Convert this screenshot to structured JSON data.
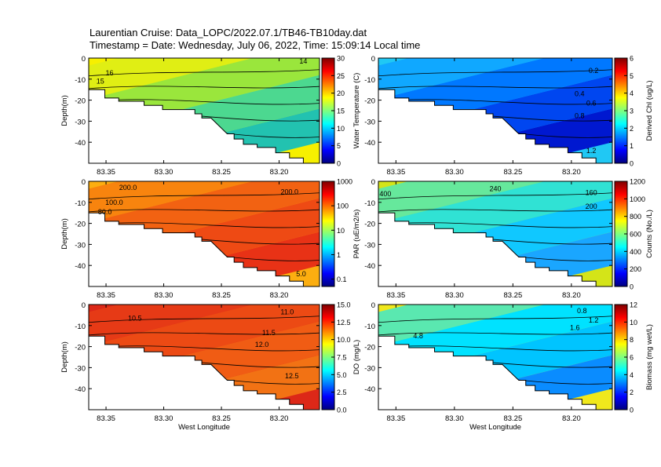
{
  "header": {
    "line1": "Laurentian Cruise: Data_LOPC/2022.07.1/TB46-TB10day.dat",
    "line2": "Timestamp = Date: Wednesday, July 06, 2022, Time: 15:09:14 Local time"
  },
  "chart_data": [
    {
      "type": "heatmap",
      "id": "water-temperature",
      "colorbar_label": "Water Temperature (C)",
      "colorbar_ticks": [
        "0",
        "5",
        "10",
        "15",
        "20",
        "25",
        "30"
      ],
      "colorbar_values": [
        0,
        5,
        10,
        15,
        20,
        25,
        30
      ],
      "y_label": "Depth(m)",
      "x_label": "",
      "x_ticks": [
        "83.35",
        "83.30",
        "83.25",
        "83.20"
      ],
      "y_ticks": [
        "0",
        "-10",
        "-20",
        "-30",
        "-40"
      ],
      "xlim": [
        83.365,
        83.165
      ],
      "ylim": [
        -50,
        0
      ],
      "contour_labels": [
        "14",
        "16",
        "15"
      ],
      "colors": [
        "#22c2b0",
        "#4cd890",
        "#9ae63c",
        "#e0ee14",
        "#f6f000"
      ]
    },
    {
      "type": "heatmap",
      "id": "derived-chl",
      "colorbar_label": "Derived Chl (ug/L)",
      "colorbar_ticks": [
        "0",
        "1",
        "2",
        "3",
        "4",
        "5",
        "6"
      ],
      "colorbar_values": [
        0,
        1,
        2,
        3,
        4,
        5,
        6
      ],
      "y_label": "",
      "x_label": "",
      "x_ticks": [
        "83.35",
        "83.30",
        "83.25",
        "83.20"
      ],
      "y_ticks": [
        "0",
        "-10",
        "-20",
        "-30",
        "-40"
      ],
      "xlim": [
        83.365,
        83.165
      ],
      "ylim": [
        -50,
        0
      ],
      "contour_labels": [
        "0.2",
        "0.4",
        "0.6",
        "0.8",
        "1.2"
      ],
      "colors": [
        "#0018d0",
        "#0046f0",
        "#0078ff",
        "#10a8ff",
        "#20c8f4"
      ]
    },
    {
      "type": "heatmap",
      "id": "par",
      "colorbar_label": "PAR (uE/m2/s)",
      "colorbar_ticks": [
        "0.1",
        "1",
        "10",
        "100",
        "1000"
      ],
      "colorbar_values": [
        0.1,
        1,
        10,
        100,
        1000
      ],
      "y_label": "Depth(m)",
      "x_label": "",
      "x_ticks": [
        "83.35",
        "83.30",
        "83.25",
        "83.20"
      ],
      "y_ticks": [
        "0",
        "-10",
        "-20",
        "-30",
        "-40"
      ],
      "xlim": [
        83.365,
        83.165
      ],
      "ylim": [
        -50,
        0
      ],
      "contour_labels": [
        "200.0",
        "200.0",
        "100.0",
        "80.0",
        "5.0"
      ],
      "colors": [
        "#e83216",
        "#ee4a14",
        "#f26212",
        "#f8840e",
        "#fcae10"
      ]
    },
    {
      "type": "heatmap",
      "id": "counts",
      "colorbar_label": "Counts (No./L)",
      "colorbar_ticks": [
        "0",
        "200",
        "400",
        "600",
        "800",
        "1000",
        "1200"
      ],
      "colorbar_values": [
        0,
        200,
        400,
        600,
        800,
        1000,
        1200
      ],
      "y_label": "",
      "x_label": "",
      "x_ticks": [
        "83.35",
        "83.30",
        "83.25",
        "83.20"
      ],
      "y_ticks": [
        "0",
        "-10",
        "-20",
        "-30",
        "-40"
      ],
      "xlim": [
        83.365,
        83.165
      ],
      "ylim": [
        -50,
        0
      ],
      "contour_labels": [
        "240",
        "160",
        "200",
        "400"
      ],
      "colors": [
        "#1aa6ff",
        "#10c8ff",
        "#30e2d4",
        "#66e89c",
        "#d4e418"
      ]
    },
    {
      "type": "heatmap",
      "id": "do",
      "colorbar_label": "DO (mg/L)",
      "colorbar_ticks": [
        "0.0",
        "2.5",
        "5.0",
        "7.5",
        "10.0",
        "12.5",
        "15.0"
      ],
      "colorbar_values": [
        0,
        2.5,
        5,
        7.5,
        10,
        12.5,
        15
      ],
      "y_label": "Depth(m)",
      "x_label": "West Longitude",
      "x_ticks": [
        "83.35",
        "83.30",
        "83.25",
        "83.20"
      ],
      "y_ticks": [
        "0",
        "-10",
        "-20",
        "-30",
        "-40"
      ],
      "xlim": [
        83.365,
        83.165
      ],
      "ylim": [
        -50,
        0
      ],
      "contour_labels": [
        "10.5",
        "11.0",
        "11.5",
        "12.0",
        "12.5"
      ],
      "colors": [
        "#f27214",
        "#f05c14",
        "#ec4a14",
        "#e63a16",
        "#dc2818"
      ]
    },
    {
      "type": "heatmap",
      "id": "biomass",
      "colorbar_label": "Biomass (mg wet/L)",
      "colorbar_ticks": [
        "0",
        "2",
        "4",
        "6",
        "8",
        "10",
        "12"
      ],
      "colorbar_values": [
        0,
        2,
        4,
        6,
        8,
        10,
        12
      ],
      "y_label": "",
      "x_label": "West Longitude",
      "x_ticks": [
        "83.35",
        "83.30",
        "83.25",
        "83.20"
      ],
      "y_ticks": [
        "0",
        "-10",
        "-20",
        "-30",
        "-40"
      ],
      "xlim": [
        83.365,
        83.165
      ],
      "ylim": [
        -50,
        0
      ],
      "contour_labels": [
        "0.8",
        "1.2",
        "1.6",
        "4.8"
      ],
      "colors": [
        "#0a8cff",
        "#00c4ff",
        "#00e2ff",
        "#5ae8b0",
        "#f0e81c"
      ]
    }
  ]
}
